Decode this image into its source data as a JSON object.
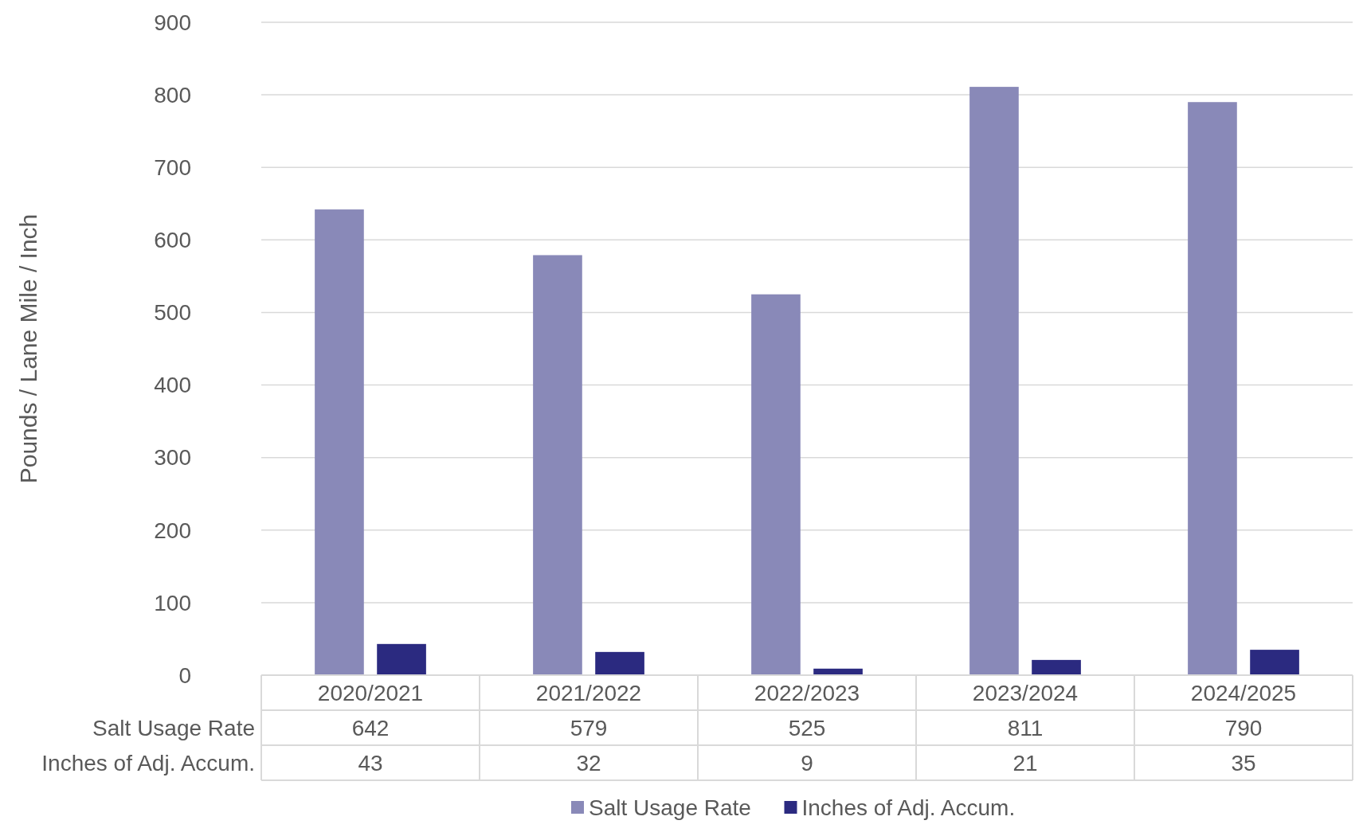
{
  "chart_data": {
    "type": "bar",
    "ylabel": "Pounds / Lane Mile / Inch",
    "categories": [
      "2020/2021",
      "2021/2022",
      "2022/2023",
      "2023/2024",
      "2024/2025"
    ],
    "series": [
      {
        "name": "Salt Usage Rate",
        "color": "#8989b8",
        "values": [
          642,
          579,
          525,
          811,
          790
        ]
      },
      {
        "name": "Inches of Adj. Accum.",
        "color": "#2b2a80",
        "values": [
          43,
          32,
          9,
          21,
          35
        ]
      }
    ],
    "ylim": [
      0,
      900
    ],
    "yticks": [
      0,
      100,
      200,
      300,
      400,
      500,
      600,
      700,
      800,
      900
    ],
    "grid": "y",
    "legend": "bottom",
    "data_labels": true
  }
}
